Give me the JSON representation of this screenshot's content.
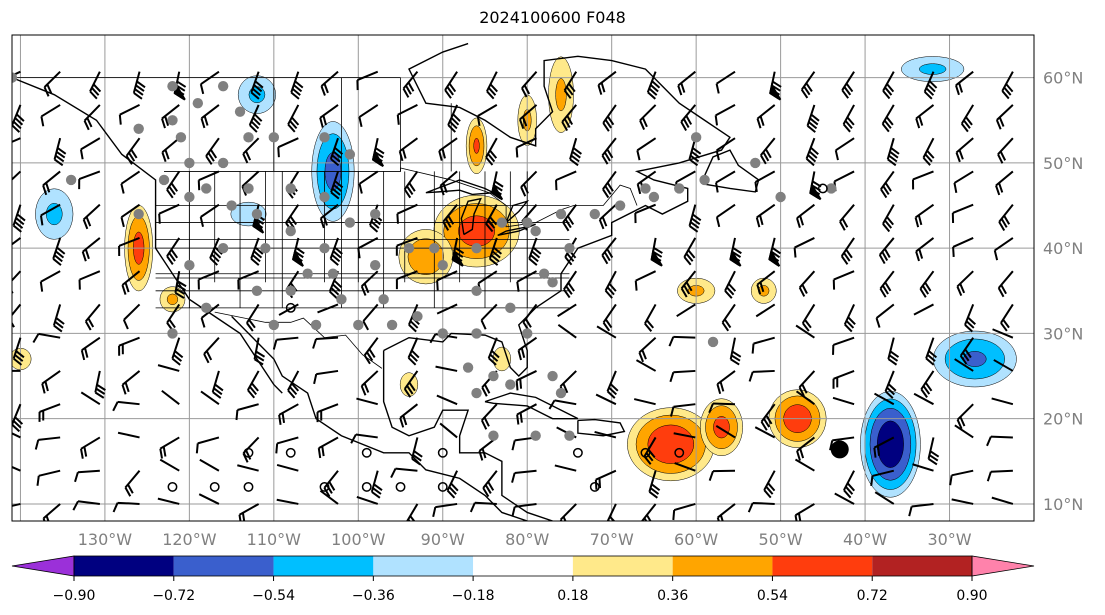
{
  "title": "2024100600 F048",
  "axes": {
    "lon_labels": [
      "130°W",
      "120°W",
      "110°W",
      "100°W",
      "90°W",
      "80°W",
      "70°W",
      "60°W",
      "50°W",
      "40°W",
      "30°W"
    ],
    "lat_labels": [
      "60°N",
      "50°N",
      "40°N",
      "30°N",
      "20°N",
      "10°N"
    ]
  },
  "colorbar": {
    "labels": [
      "−0.90",
      "−0.72",
      "−0.54",
      "−0.36",
      "−0.18",
      "0.18",
      "0.36",
      "0.54",
      "0.72",
      "0.90"
    ],
    "colors": [
      "#9b30d9",
      "#000080",
      "#3a5fcd",
      "#00bfff",
      "#b0e2ff",
      "#ffffff",
      "#ffe98a",
      "#ffa500",
      "#ff3d0d",
      "#b22222",
      "#ff82ab"
    ]
  },
  "chart_data": {
    "type": "map",
    "projection": "plate carree",
    "lon_range": [
      -141,
      -20
    ],
    "lat_range": [
      8,
      65
    ],
    "grid": true,
    "field_levels": [
      -0.9,
      -0.72,
      -0.54,
      -0.36,
      -0.18,
      0.18,
      0.36,
      0.54,
      0.72,
      0.9
    ],
    "positive_regions": [
      {
        "lon": -86,
        "lat": 42,
        "rlon": 6,
        "rlat": 5,
        "peak": 0.62
      },
      {
        "lon": -92,
        "lat": 39,
        "rlon": 4,
        "rlat": 4,
        "peak": 0.5
      },
      {
        "lon": -80,
        "lat": 55,
        "rlon": 1.5,
        "rlat": 4,
        "peak": 0.4
      },
      {
        "lon": -86,
        "lat": 52,
        "rlon": 1.5,
        "rlat": 4,
        "peak": 0.55
      },
      {
        "lon": -76,
        "lat": 58,
        "rlon": 2,
        "rlat": 6,
        "peak": 0.4
      },
      {
        "lon": -126,
        "lat": 40,
        "rlon": 2,
        "rlat": 6,
        "peak": 0.6
      },
      {
        "lon": -122,
        "lat": 34,
        "rlon": 2,
        "rlat": 2,
        "peak": 0.4
      },
      {
        "lon": -63,
        "lat": 17,
        "rlon": 6,
        "rlat": 5,
        "peak": 0.68
      },
      {
        "lon": -57,
        "lat": 19,
        "rlon": 3,
        "rlat": 4,
        "peak": 0.6
      },
      {
        "lon": -48,
        "lat": 20,
        "rlon": 4,
        "rlat": 4,
        "peak": 0.65
      },
      {
        "lon": -60,
        "lat": 35,
        "rlon": 3,
        "rlat": 2,
        "peak": 0.4
      },
      {
        "lon": -52,
        "lat": 35,
        "rlon": 2,
        "rlat": 2,
        "peak": 0.4
      },
      {
        "lon": -83,
        "lat": 27,
        "rlon": 1.5,
        "rlat": 2,
        "peak": 0.35
      },
      {
        "lon": -94,
        "lat": 24,
        "rlon": 1.5,
        "rlat": 2,
        "peak": 0.35
      },
      {
        "lon": -140,
        "lat": 27,
        "rlon": 2,
        "rlat": 2,
        "peak": 0.3
      }
    ],
    "negative_regions": [
      {
        "lon": -103,
        "lat": 49,
        "rlon": 3,
        "rlat": 7,
        "peak": -0.6
      },
      {
        "lon": -112,
        "lat": 58,
        "rlon": 3,
        "rlat": 3,
        "peak": -0.4
      },
      {
        "lon": -37,
        "lat": 17,
        "rlon": 4,
        "rlat": 7,
        "peak": -0.85
      },
      {
        "lon": -27,
        "lat": 27,
        "rlon": 6,
        "rlat": 4,
        "peak": -0.55
      },
      {
        "lon": -32,
        "lat": 61,
        "rlon": 5,
        "rlat": 2,
        "peak": -0.4
      },
      {
        "lon": -136,
        "lat": 44,
        "rlon": 3,
        "rlat": 4,
        "peak": -0.4
      },
      {
        "lon": -113,
        "lat": 44,
        "rlon": 3,
        "rlat": 2,
        "peak": -0.35
      }
    ],
    "gray_dots": [
      [
        -141,
        60
      ],
      [
        -122,
        59
      ],
      [
        -119,
        57
      ],
      [
        -116,
        59
      ],
      [
        -114,
        56
      ],
      [
        -122,
        55
      ],
      [
        -126,
        54
      ],
      [
        -121,
        53
      ],
      [
        -113,
        53
      ],
      [
        -110,
        53
      ],
      [
        -104,
        53
      ],
      [
        -101,
        51
      ],
      [
        -120,
        50
      ],
      [
        -116,
        50
      ],
      [
        -113,
        47
      ],
      [
        -108,
        47
      ],
      [
        -104,
        46
      ],
      [
        -134,
        48
      ],
      [
        -123,
        48
      ],
      [
        -118,
        47
      ],
      [
        -126,
        44
      ],
      [
        -120,
        46
      ],
      [
        -115,
        45
      ],
      [
        -112,
        44
      ],
      [
        -108,
        42
      ],
      [
        -104,
        40
      ],
      [
        -101,
        43
      ],
      [
        -98,
        44
      ],
      [
        -94,
        40
      ],
      [
        -91,
        40
      ],
      [
        -86,
        40
      ],
      [
        -83,
        43
      ],
      [
        -80,
        43
      ],
      [
        -76,
        44
      ],
      [
        -72,
        44
      ],
      [
        -69,
        45
      ],
      [
        -65,
        46
      ],
      [
        -62,
        47
      ],
      [
        -59,
        48
      ],
      [
        -53,
        50
      ],
      [
        -50,
        46
      ],
      [
        -44,
        47
      ],
      [
        -60,
        53
      ],
      [
        -103,
        37
      ],
      [
        -98,
        38
      ],
      [
        -90,
        38
      ],
      [
        -86,
        35
      ],
      [
        -82,
        33
      ],
      [
        -80,
        30
      ],
      [
        -78,
        37
      ],
      [
        -75,
        40
      ],
      [
        -79,
        42
      ],
      [
        -120,
        38
      ],
      [
        -116,
        40
      ],
      [
        -111,
        40
      ],
      [
        -106,
        37
      ],
      [
        -102,
        34
      ],
      [
        -97,
        34
      ],
      [
        -93,
        32
      ],
      [
        -90,
        30
      ],
      [
        -86,
        30
      ],
      [
        -96,
        31
      ],
      [
        -100,
        31
      ],
      [
        -105,
        31
      ],
      [
        -110,
        31
      ],
      [
        -118,
        33
      ],
      [
        -122,
        30
      ],
      [
        -112,
        35
      ],
      [
        -108,
        35
      ],
      [
        -87,
        26
      ],
      [
        -84,
        25
      ],
      [
        -82,
        24
      ],
      [
        -77,
        25
      ],
      [
        -76,
        23
      ],
      [
        -86,
        23
      ],
      [
        -84,
        18
      ],
      [
        -79,
        18
      ],
      [
        -75,
        18
      ],
      [
        -58,
        29
      ],
      [
        -66,
        47
      ],
      [
        -77,
        36
      ]
    ],
    "open_circles": [
      [
        -45,
        47
      ],
      [
        -108,
        33
      ],
      [
        -74,
        16
      ],
      [
        -62,
        16
      ],
      [
        -66,
        16
      ],
      [
        -90,
        16
      ],
      [
        -99,
        16
      ],
      [
        -108,
        16
      ],
      [
        -113,
        16
      ],
      [
        -113,
        12
      ],
      [
        -117,
        12
      ],
      [
        -122,
        12
      ],
      [
        -104,
        12
      ],
      [
        -99,
        12
      ],
      [
        -95,
        12
      ],
      [
        -90,
        12
      ],
      [
        -72,
        12
      ]
    ],
    "filled_dot": [
      -43,
      16.4
    ]
  }
}
